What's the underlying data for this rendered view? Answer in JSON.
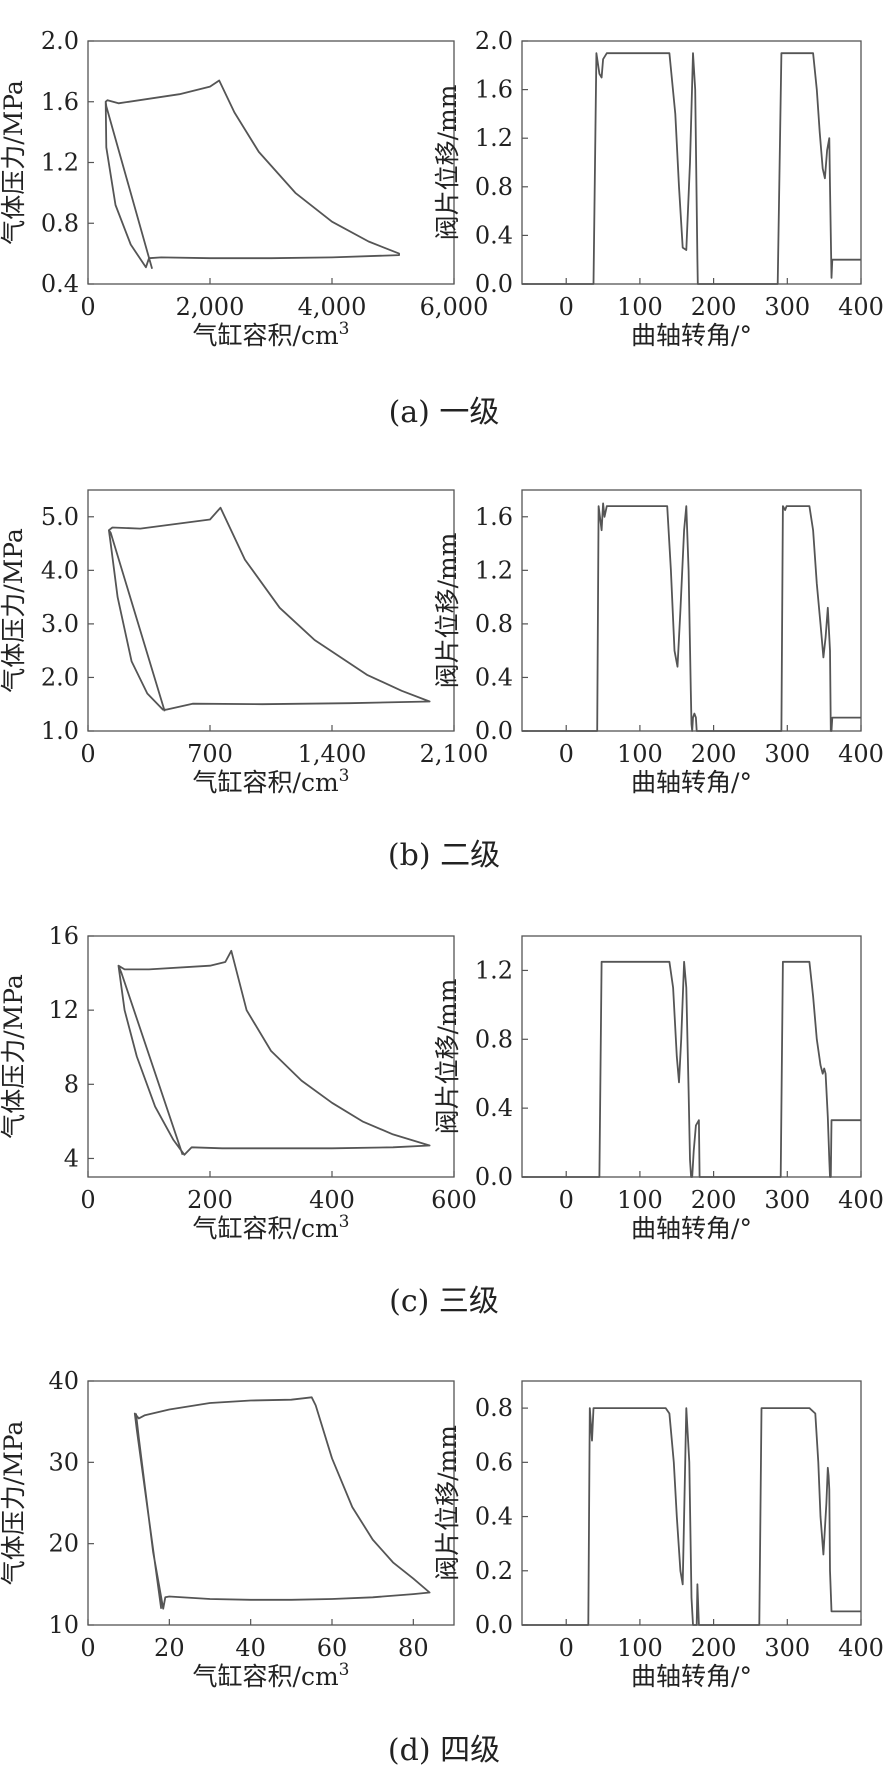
{
  "charts": [
    {
      "caption": "(a) 一级",
      "pv": {
        "xlabel": "气缸容积/cm",
        "xlabel_sup": "3",
        "ylabel": "气体压力/MPa",
        "xlim": [
          0,
          6000
        ],
        "ylim": [
          0.4,
          2.0
        ],
        "xticks": [
          0,
          2000,
          4000,
          6000
        ],
        "xtick_labels": [
          "0",
          "2,000",
          "4,000",
          "6,000"
        ],
        "yticks": [
          0.4,
          0.8,
          1.2,
          1.6,
          2.0
        ],
        "ytick_labels": [
          "0.4",
          "0.8",
          "1.2",
          "1.6",
          "2.0"
        ]
      },
      "lift": {
        "xlabel": "曲轴转角/°",
        "ylabel": "阀片位移/mm",
        "xlim": [
          -60,
          400
        ],
        "ylim": [
          0,
          2.0
        ],
        "xticks": [
          0,
          100,
          200,
          300,
          400
        ],
        "xtick_labels": [
          "0",
          "100",
          "200",
          "300",
          "400"
        ],
        "yticks": [
          0,
          0.4,
          0.8,
          1.2,
          1.6,
          2.0
        ],
        "ytick_labels": [
          "0.0",
          "0.4",
          "0.8",
          "1.2",
          "1.6",
          "2.0"
        ]
      }
    },
    {
      "caption": "(b) 二级",
      "pv": {
        "xlabel": "气缸容积/cm",
        "xlabel_sup": "3",
        "ylabel": "气体压力/MPa",
        "xlim": [
          0,
          2100
        ],
        "ylim": [
          1.0,
          5.5
        ],
        "xticks": [
          0,
          700,
          1400,
          2100
        ],
        "xtick_labels": [
          "0",
          "700",
          "1,400",
          "2,100"
        ],
        "yticks": [
          1.0,
          2.0,
          3.0,
          4.0,
          5.0
        ],
        "ytick_labels": [
          "1.0",
          "2.0",
          "3.0",
          "4.0",
          "5.0"
        ]
      },
      "lift": {
        "xlabel": "曲轴转角/°",
        "ylabel": "阀片位移/mm",
        "xlim": [
          -60,
          400
        ],
        "ylim": [
          0,
          1.8
        ],
        "xticks": [
          0,
          100,
          200,
          300,
          400
        ],
        "xtick_labels": [
          "0",
          "100",
          "200",
          "300",
          "400"
        ],
        "yticks": [
          0,
          0.4,
          0.8,
          1.2,
          1.6
        ],
        "ytick_labels": [
          "0.0",
          "0.4",
          "0.8",
          "1.2",
          "1.6"
        ]
      }
    },
    {
      "caption": "(c) 三级",
      "pv": {
        "xlabel": "气缸容积/cm",
        "xlabel_sup": "3",
        "ylabel": "气体压力/MPa",
        "xlim": [
          0,
          600
        ],
        "ylim": [
          3,
          16
        ],
        "xticks": [
          0,
          200,
          400,
          600
        ],
        "xtick_labels": [
          "0",
          "200",
          "400",
          "600"
        ],
        "yticks": [
          4,
          8,
          12,
          16
        ],
        "ytick_labels": [
          "4",
          "8",
          "12",
          "16"
        ]
      },
      "lift": {
        "xlabel": "曲轴转角/°",
        "ylabel": "阀片位移/mm",
        "xlim": [
          -60,
          400
        ],
        "ylim": [
          0,
          1.4
        ],
        "xticks": [
          0,
          100,
          200,
          300,
          400
        ],
        "xtick_labels": [
          "0",
          "100",
          "200",
          "300",
          "400"
        ],
        "yticks": [
          0,
          0.4,
          0.8,
          1.2
        ],
        "ytick_labels": [
          "0.0",
          "0.4",
          "0.8",
          "1.2"
        ]
      }
    },
    {
      "caption": "(d) 四级",
      "pv": {
        "xlabel": "气缸容积/cm",
        "xlabel_sup": "3",
        "ylabel": "气体压力/MPa",
        "xlim": [
          0,
          90
        ],
        "ylim": [
          10,
          40
        ],
        "xticks": [
          0,
          20,
          40,
          60,
          80
        ],
        "xtick_labels": [
          "0",
          "20",
          "40",
          "60",
          "80"
        ],
        "yticks": [
          10,
          20,
          30,
          40
        ],
        "ytick_labels": [
          "10",
          "20",
          "30",
          "40"
        ]
      },
      "lift": {
        "xlabel": "曲轴转角/°",
        "ylabel": "阀片位移/mm",
        "xlim": [
          -60,
          400
        ],
        "ylim": [
          0,
          0.9
        ],
        "xticks": [
          0,
          100,
          200,
          300,
          400
        ],
        "xtick_labels": [
          "0",
          "100",
          "200",
          "300",
          "400"
        ],
        "yticks": [
          0,
          0.2,
          0.4,
          0.6,
          0.8
        ],
        "ytick_labels": [
          "0.0",
          "0.2",
          "0.4",
          "0.6",
          "0.8"
        ]
      }
    }
  ],
  "chart_data": [
    {
      "type": "line",
      "panel": "(a) pv",
      "series": [
        {
          "x": [
            1050,
            300,
            290,
            320,
            500,
            1500,
            2000,
            2150,
            2400,
            2800,
            3400,
            4000,
            4600,
            5100,
            5100,
            4000,
            3000,
            2000,
            1200,
            1000,
            950,
            700,
            450,
            300,
            290
          ],
          "y": [
            0.5,
            1.57,
            1.6,
            1.61,
            1.59,
            1.65,
            1.7,
            1.74,
            1.53,
            1.27,
            1.0,
            0.81,
            0.68,
            0.6,
            0.59,
            0.575,
            0.57,
            0.57,
            0.575,
            0.57,
            0.51,
            0.66,
            0.92,
            1.3,
            1.6
          ]
        }
      ]
    },
    {
      "type": "line",
      "panel": "(a) lift",
      "series": [
        {
          "x": [
            -60,
            37,
            41,
            45,
            48,
            50,
            55,
            60,
            140,
            148,
            153,
            158,
            163,
            168,
            172,
            175,
            178,
            178.5,
            280,
            287,
            292,
            300,
            335,
            340,
            344,
            348,
            351,
            354,
            357,
            358,
            360,
            361,
            400
          ],
          "y": [
            0,
            0,
            1.9,
            1.73,
            1.7,
            1.85,
            1.9,
            1.9,
            1.9,
            1.4,
            0.8,
            0.3,
            0.28,
            1.0,
            1.9,
            1.6,
            0.2,
            0,
            0,
            0,
            1.9,
            1.9,
            1.9,
            1.6,
            1.25,
            0.95,
            0.87,
            1.1,
            1.2,
            0.8,
            0.05,
            0.2,
            0.2
          ]
        }
      ]
    },
    {
      "type": "line",
      "panel": "(b) pv",
      "series": [
        {
          "x": [
            440,
            130,
            120,
            140,
            300,
            700,
            760,
            900,
            1100,
            1300,
            1600,
            1800,
            1960,
            1960,
            1500,
            1000,
            600,
            450,
            430,
            340,
            250,
            170,
            130,
            120
          ],
          "y": [
            1.37,
            4.7,
            4.75,
            4.8,
            4.78,
            4.95,
            5.17,
            4.2,
            3.3,
            2.7,
            2.05,
            1.75,
            1.55,
            1.55,
            1.52,
            1.5,
            1.51,
            1.4,
            1.4,
            1.7,
            2.3,
            3.5,
            4.5,
            4.75
          ]
        }
      ]
    },
    {
      "type": "line",
      "panel": "(b) lift",
      "series": [
        {
          "x": [
            -60,
            42,
            44,
            48,
            50,
            52,
            55,
            60,
            137,
            142,
            147,
            151,
            155,
            160,
            163,
            166,
            169,
            170,
            171,
            172,
            174,
            176,
            177,
            178,
            179,
            292,
            294,
            297,
            299,
            302,
            330,
            335,
            340,
            345,
            349,
            352,
            355,
            358,
            359,
            360,
            361,
            400
          ],
          "y": [
            0,
            0,
            1.68,
            1.5,
            1.7,
            1.6,
            1.68,
            1.68,
            1.68,
            1.2,
            0.6,
            0.48,
            0.9,
            1.5,
            1.68,
            1.2,
            0.3,
            0.05,
            0,
            0.1,
            0.13,
            0.1,
            0,
            0,
            0,
            0,
            1.68,
            1.65,
            1.68,
            1.68,
            1.68,
            1.5,
            1.1,
            0.8,
            0.55,
            0.7,
            0.92,
            0.6,
            0,
            0,
            0.1,
            0.1
          ]
        }
      ]
    },
    {
      "type": "line",
      "panel": "(c) pv",
      "series": [
        {
          "x": [
            155,
            55,
            50,
            60,
            100,
            200,
            225,
            235,
            260,
            300,
            350,
            400,
            450,
            500,
            560,
            560,
            500,
            400,
            300,
            220,
            170,
            158,
            140,
            110,
            80,
            60,
            50
          ],
          "y": [
            4.2,
            14.0,
            14.4,
            14.2,
            14.2,
            14.4,
            14.6,
            15.2,
            12.0,
            9.8,
            8.2,
            7.0,
            6.0,
            5.3,
            4.7,
            4.7,
            4.6,
            4.55,
            4.55,
            4.55,
            4.6,
            4.2,
            5.0,
            6.8,
            9.5,
            12.0,
            14.4
          ]
        }
      ]
    },
    {
      "type": "line",
      "panel": "(c) lift",
      "series": [
        {
          "x": [
            -60,
            45,
            48,
            52,
            55,
            60,
            140,
            145,
            150,
            153,
            156,
            160,
            163,
            166,
            168,
            169.5,
            171,
            173,
            176,
            180,
            181,
            182,
            291,
            294,
            298,
            300,
            330,
            335,
            340,
            345,
            348,
            350,
            352,
            355,
            357,
            358,
            359,
            360,
            400
          ],
          "y": [
            0,
            0,
            1.25,
            1.25,
            1.25,
            1.25,
            1.25,
            1.1,
            0.7,
            0.55,
            0.8,
            1.25,
            1.1,
            0.5,
            0.1,
            0,
            0,
            0.15,
            0.3,
            0.33,
            0,
            0,
            0,
            1.25,
            1.25,
            1.25,
            1.25,
            1.05,
            0.8,
            0.65,
            0.6,
            0.63,
            0.6,
            0.35,
            0.1,
            0,
            0,
            0.33,
            0.33
          ]
        }
      ]
    },
    {
      "type": "line",
      "panel": "(d) pv",
      "series": [
        {
          "x": [
            18,
            12,
            11.5,
            12.5,
            14,
            20,
            30,
            40,
            50,
            55,
            56,
            60,
            65,
            70,
            75,
            80,
            84,
            84,
            80,
            70,
            60,
            50,
            40,
            30,
            20,
            19,
            18.5,
            16,
            14,
            12.5,
            11.8
          ],
          "y": [
            12.0,
            34.0,
            36.0,
            35.4,
            35.8,
            36.5,
            37.3,
            37.6,
            37.7,
            38.0,
            37.0,
            30.5,
            24.5,
            20.5,
            17.7,
            15.7,
            14.0,
            14.0,
            13.8,
            13.4,
            13.2,
            13.1,
            13.1,
            13.2,
            13.5,
            13.4,
            12.0,
            19.0,
            27.0,
            33.0,
            36.0
          ]
        }
      ]
    },
    {
      "type": "line",
      "panel": "(d) lift",
      "series": [
        {
          "x": [
            -60,
            30,
            32,
            35,
            37,
            40,
            50,
            135,
            140,
            146,
            150,
            155,
            158,
            160,
            163,
            167,
            170,
            172,
            173,
            176,
            177,
            178,
            180,
            255,
            262,
            265,
            270,
            330,
            338,
            342,
            345,
            349,
            353,
            355,
            356,
            357,
            358,
            360,
            400
          ],
          "y": [
            0,
            0,
            0.8,
            0.68,
            0.8,
            0.8,
            0.8,
            0.8,
            0.78,
            0.6,
            0.4,
            0.2,
            0.15,
            0.4,
            0.8,
            0.6,
            0.1,
            0,
            0,
            0,
            0,
            0.15,
            0,
            0,
            0,
            0.8,
            0.8,
            0.8,
            0.78,
            0.6,
            0.4,
            0.26,
            0.45,
            0.58,
            0.55,
            0.5,
            0.2,
            0.05,
            0.05
          ]
        }
      ]
    }
  ]
}
